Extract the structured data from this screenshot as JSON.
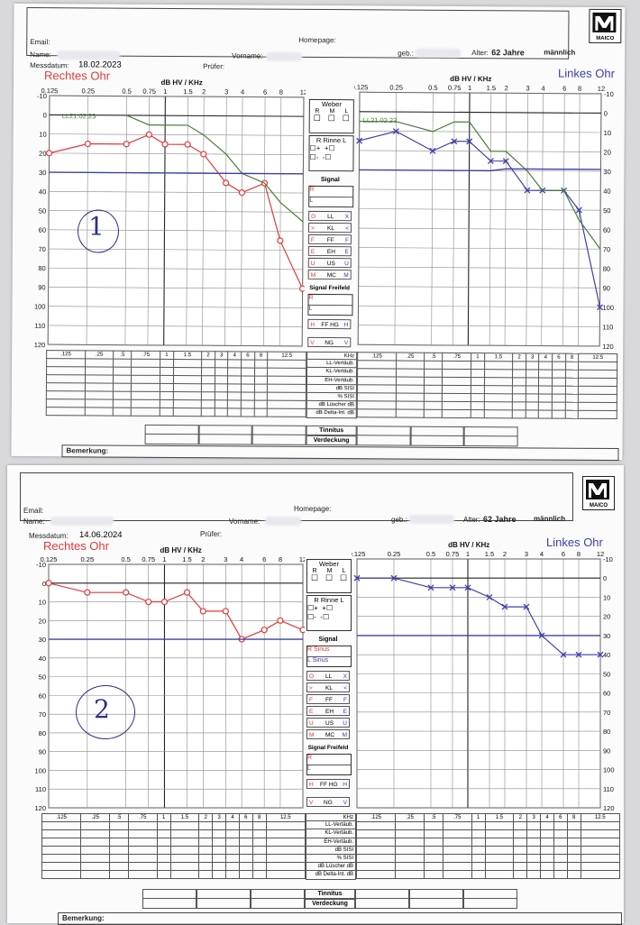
{
  "header": {
    "email_label": "Email:",
    "homepage_label": "Homepage:",
    "name_label": "Name:",
    "vorname_label": "Vorname:",
    "geb_label": "geb.:",
    "alter_label": "Alter:",
    "pruefer_label": "Prüfer:",
    "messdatum_label": "Messdatum:",
    "logo_text": "MAICO"
  },
  "sheets": [
    {
      "messdatum": "18.02.2023",
      "alter": "62 Jahre",
      "geschlecht": "männlich",
      "annotation": "1",
      "signal_r": "",
      "signal_l": ""
    },
    {
      "messdatum": "14.06.2024",
      "alter": "62 Jahre",
      "geschlecht": "männlich",
      "annotation": "2",
      "signal_r": "Sinus",
      "signal_l": "Sinus"
    }
  ],
  "labels": {
    "rechtes_ohr": "Rechtes Ohr",
    "linkes_ohr": "Linkes Ohr",
    "axis_title": "dB HV / KHz",
    "prior_date": "LL21.02.23",
    "weber": "Weber",
    "rinne": "Rinne",
    "signal": "Signal",
    "signal_freifeld": "Signal Freifeld",
    "tinnitus": "Tinnitus",
    "verdeckung": "Verdeckung",
    "bemerkung": "Bemerkung:",
    "khz": "KHz",
    "rows": [
      "LL-Vertäub.",
      "KL-Vertäub.",
      "EH-Vertäub.",
      "dB   SISI",
      "%   SISI",
      "dB  Lüscher  dB",
      "dB  Delta-Int.  dB"
    ],
    "legend": [
      {
        "l": "O",
        "c": "LL",
        "r": "X"
      },
      {
        "l": ">",
        "c": "KL",
        "r": "<"
      },
      {
        "l": "F",
        "c": "FF",
        "r": "F"
      },
      {
        "l": "E",
        "c": "EH",
        "r": "E"
      },
      {
        "l": "U",
        "c": "US",
        "r": "U"
      },
      {
        "l": "M",
        "c": "MC",
        "r": "M"
      }
    ],
    "ff_hg": "FF HG",
    "ng": "NG",
    "top_ticks": [
      "0.125",
      "0.25",
      "0.5",
      "0.75",
      "1",
      "1.5",
      "2",
      "3",
      "4",
      "6",
      "8",
      "12"
    ],
    "table_ticks": [
      ".125",
      ".25",
      ".5",
      ".75",
      "1",
      "1.5",
      "2",
      "3",
      "4",
      "6",
      "8",
      "12.5"
    ],
    "y_ticks": [
      "-10",
      "0",
      "10",
      "20",
      "30",
      "40",
      "50",
      "60",
      "70",
      "80",
      "90",
      "100",
      "110",
      "120"
    ]
  },
  "colors": {
    "right": "#e03a3a",
    "left": "#3c40a8",
    "prior": "#4a7a3a",
    "grid": "#8a8a8a"
  },
  "chart_data": [
    {
      "type": "line",
      "title": "Rechtes Ohr 18.02.2023",
      "x": [
        0.125,
        0.25,
        0.5,
        0.75,
        1,
        1.5,
        2,
        3,
        4,
        6,
        8,
        12
      ],
      "ylim": [
        120,
        -10
      ],
      "series": [
        {
          "name": "LL",
          "values": [
            20,
            15,
            15,
            10,
            15,
            15,
            20,
            35,
            40,
            35,
            65,
            90
          ]
        },
        {
          "name": "LL21.02.23",
          "x": [
            0.5,
            0.75,
            1,
            1.5,
            2,
            3,
            4,
            6,
            8,
            12
          ],
          "values": [
            0,
            5,
            5,
            5,
            10,
            20,
            30,
            35,
            45,
            55
          ]
        },
        {
          "name": "",
          "values": [
            30,
            30,
            30,
            30,
            30,
            30,
            30,
            30,
            30,
            30,
            30,
            30
          ]
        }
      ]
    },
    {
      "type": "line",
      "title": "Linkes Ohr 18.02.2023",
      "x": [
        0.125,
        0.25,
        0.5,
        0.75,
        1,
        1.5,
        2,
        3,
        4,
        6,
        8,
        12
      ],
      "ylim": [
        120,
        -10
      ],
      "series": [
        {
          "name": "LL",
          "values": [
            15,
            10,
            20,
            15,
            15,
            25,
            25,
            40,
            40,
            40,
            50,
            100
          ]
        },
        {
          "name": "LL21.02.23",
          "values": [
            5,
            5,
            10,
            5,
            5,
            20,
            20,
            30,
            40,
            40,
            55,
            70
          ]
        },
        {
          "name": "",
          "values": [
            30,
            30,
            30,
            30,
            30,
            30,
            29,
            29,
            29,
            29,
            29,
            29
          ]
        }
      ]
    },
    {
      "type": "line",
      "title": "Rechtes Ohr 14.06.2024",
      "x": [
        0.125,
        0.25,
        0.5,
        0.75,
        1,
        1.5,
        2,
        3,
        4,
        6,
        8,
        12
      ],
      "ylim": [
        120,
        -10
      ],
      "series": [
        {
          "name": "LL",
          "values": [
            0,
            5,
            5,
            10,
            10,
            5,
            15,
            15,
            30,
            25,
            20,
            25
          ]
        },
        {
          "name": "",
          "values": [
            30,
            30,
            30,
            30,
            30,
            30,
            30,
            30,
            30,
            30,
            30,
            30
          ]
        }
      ]
    },
    {
      "type": "line",
      "title": "Linkes Ohr 14.06.2024",
      "x": [
        0.125,
        0.25,
        0.5,
        0.75,
        1,
        1.5,
        2,
        3,
        4,
        6,
        8,
        12
      ],
      "ylim": [
        120,
        -10
      ],
      "series": [
        {
          "name": "LL",
          "values": [
            0,
            0,
            5,
            5,
            5,
            10,
            15,
            15,
            30,
            40,
            40,
            40
          ]
        },
        {
          "name": "",
          "values": [
            30,
            30,
            30,
            30,
            30,
            30,
            30,
            30,
            30,
            30,
            30,
            30
          ]
        }
      ]
    }
  ]
}
